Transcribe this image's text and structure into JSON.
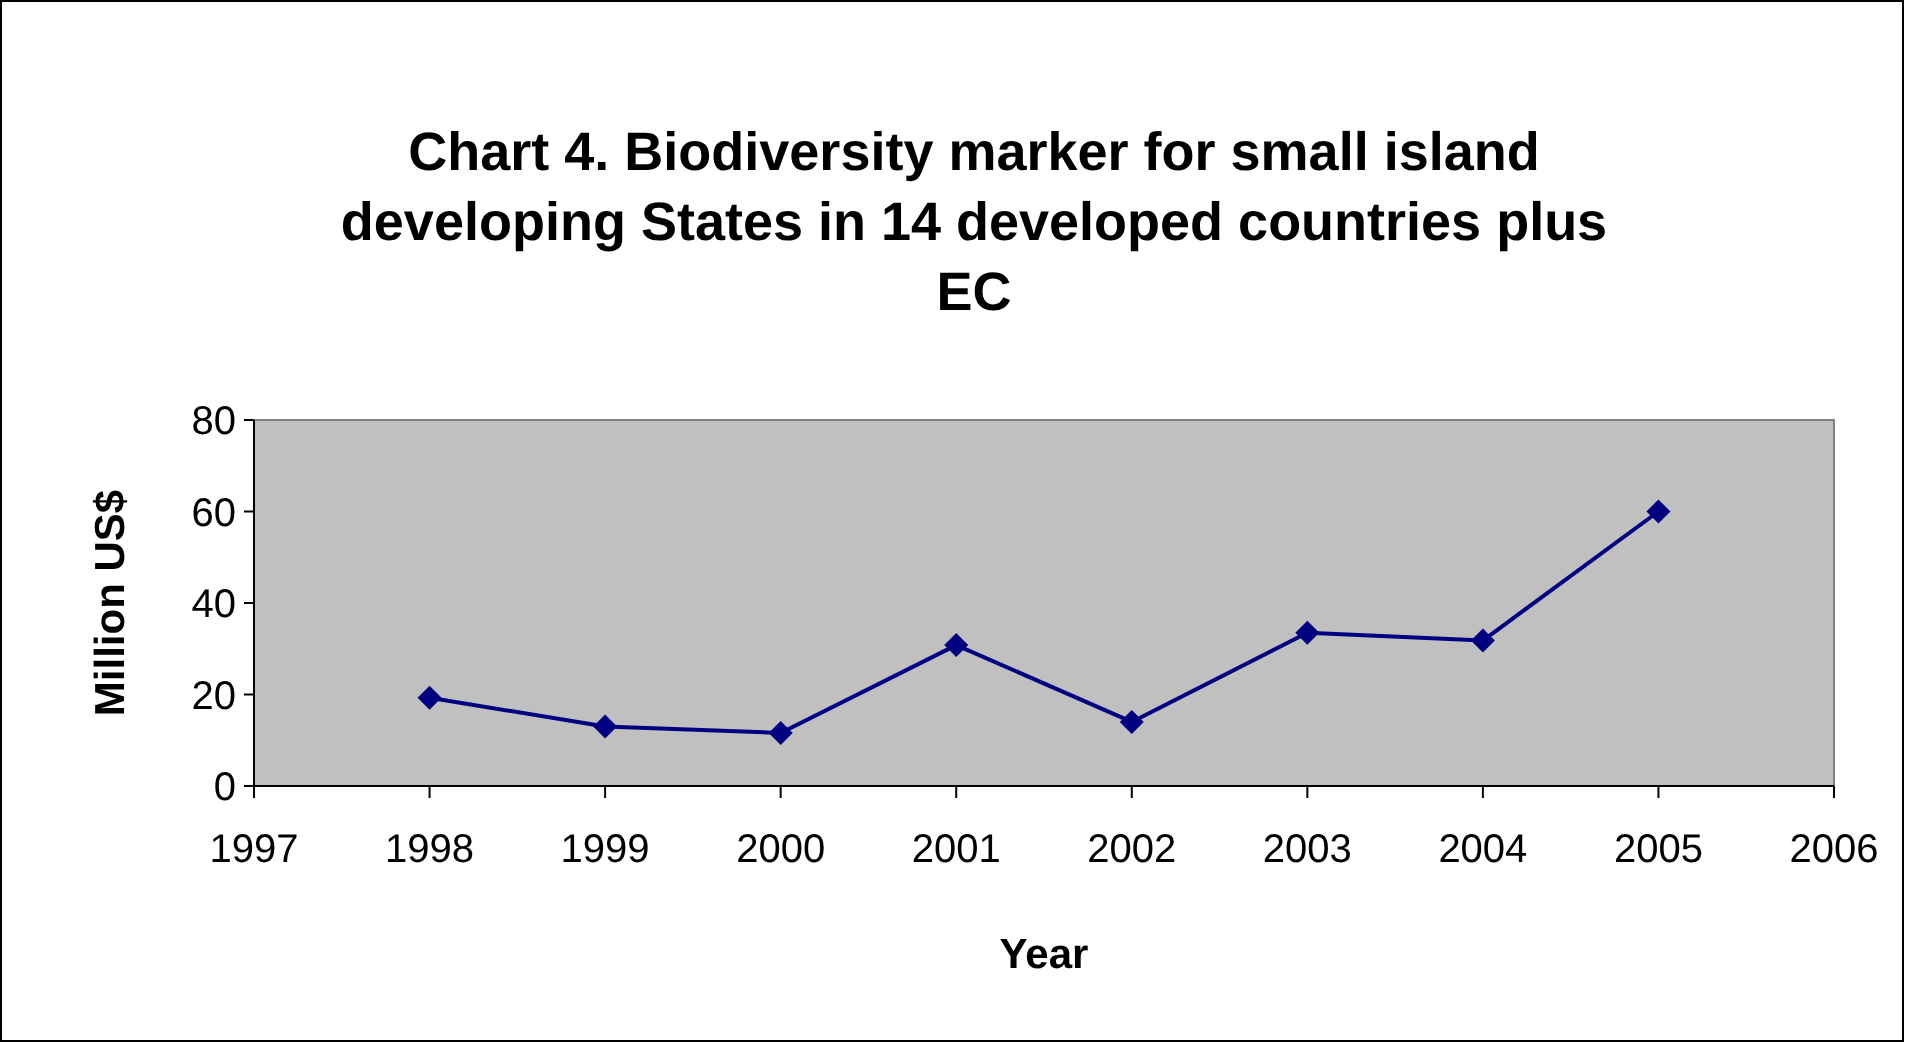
{
  "chart_data": {
    "type": "line",
    "title": "Chart 4. Biodiversity marker for small island developing States in 14 developed countries plus EC",
    "xlabel": "Year",
    "ylabel": "Million US$",
    "x": [
      1998,
      1999,
      2000,
      2001,
      2002,
      2003,
      2004,
      2005
    ],
    "series": [
      {
        "color": "#000080",
        "values": [
          19.3,
          13,
          11.6,
          30.8,
          14,
          33.5,
          31.8,
          60
        ]
      }
    ],
    "xlim": [
      1997,
      2006
    ],
    "xticks": [
      1997,
      1998,
      1999,
      2000,
      2001,
      2002,
      2003,
      2004,
      2005,
      2006
    ],
    "ylim": [
      0,
      80
    ],
    "yticks": [
      0,
      20,
      40,
      60,
      80
    ],
    "marker": "diamond"
  }
}
